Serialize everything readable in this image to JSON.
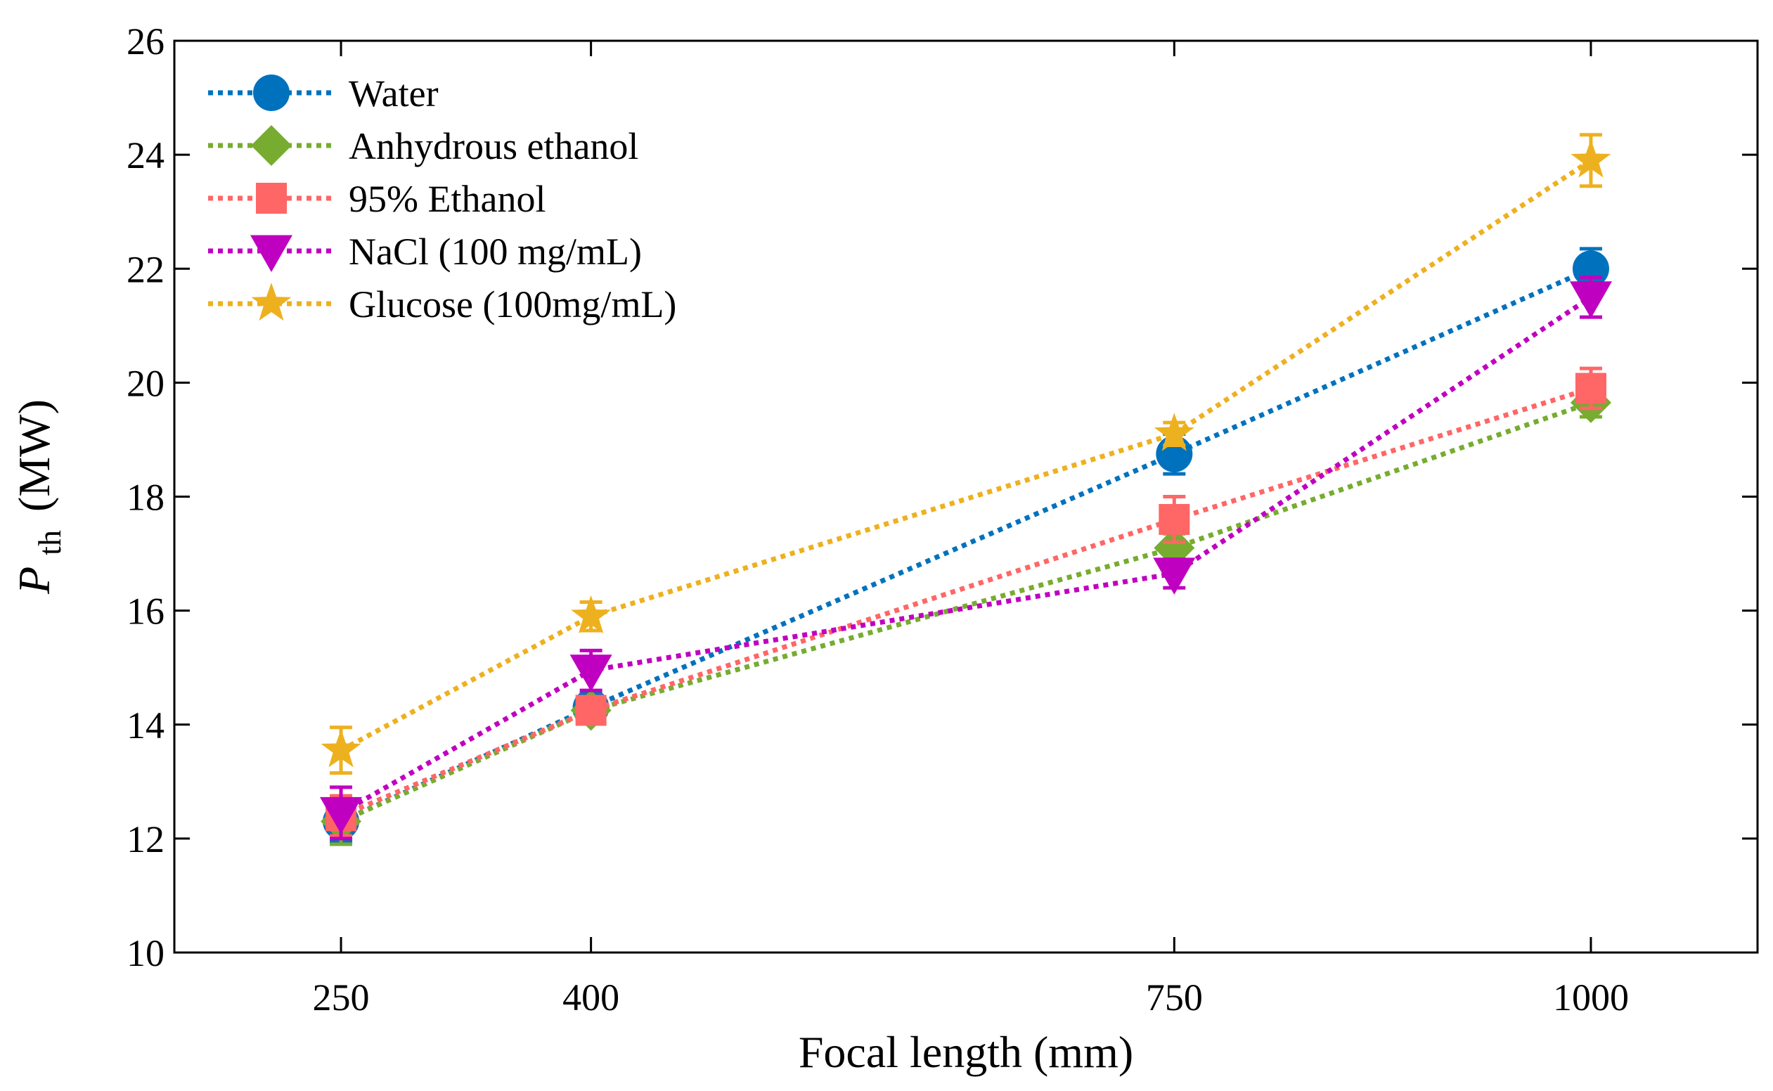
{
  "chart_data": {
    "type": "line",
    "title": "",
    "xlabel": "Focal length (mm)",
    "ylabel": {
      "symbol": "P",
      "subscript": "th",
      "unit": "(MW)"
    },
    "x": [
      250,
      400,
      750,
      1000
    ],
    "xticks": [
      "250",
      "400",
      "750",
      "1000"
    ],
    "xlim": [
      150,
      1100
    ],
    "ylim": [
      10,
      26
    ],
    "yticks": [
      "10",
      "12",
      "14",
      "16",
      "18",
      "20",
      "22",
      "24",
      "26"
    ],
    "grid": false,
    "legend_position": "top-left",
    "series": [
      {
        "name": "Water",
        "values": [
          12.3,
          14.3,
          18.75,
          22.0
        ],
        "errors": [
          0.35,
          0.25,
          0.35,
          0.35
        ],
        "color": "#0072BD",
        "marker": "circle"
      },
      {
        "name": "Anhydrous ethanol",
        "values": [
          12.3,
          14.25,
          17.1,
          19.65
        ],
        "errors": [
          0.4,
          0.2,
          0.25,
          0.25
        ],
        "color": "#77AC30",
        "marker": "diamond"
      },
      {
        "name": "95% Ethanol",
        "values": [
          12.4,
          14.25,
          17.6,
          19.9
        ],
        "errors": [
          0.35,
          0.2,
          0.4,
          0.35
        ],
        "color": "#FF6666",
        "marker": "square"
      },
      {
        "name": "NaCl (100 mg/mL)",
        "values": [
          12.45,
          14.95,
          16.65,
          21.5
        ],
        "errors": [
          0.45,
          0.35,
          0.25,
          0.35
        ],
        "color": "#C000C0",
        "marker": "triangle-down"
      },
      {
        "name": "Glucose (100mg/mL)",
        "values": [
          13.55,
          15.9,
          19.1,
          23.9
        ],
        "errors": [
          0.4,
          0.25,
          0.2,
          0.45
        ],
        "color": "#EDB120",
        "marker": "star"
      }
    ]
  }
}
